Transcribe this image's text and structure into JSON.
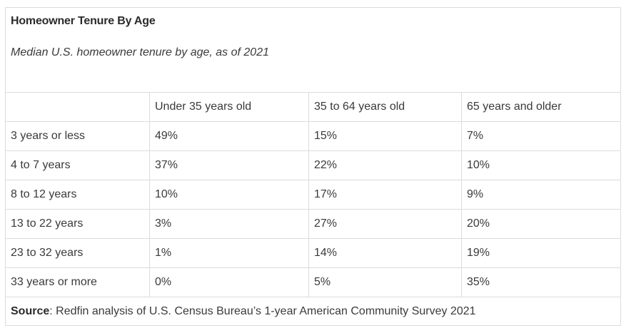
{
  "table": {
    "title": "Homeowner Tenure By Age",
    "subtitle": "Median U.S. homeowner tenure by age, as of 2021",
    "columns": [
      "",
      "Under 35 years old",
      "35 to 64 years old",
      "65 years and older"
    ],
    "rows": [
      {
        "label": "3 years or less",
        "values": [
          "49%",
          "15%",
          "7%"
        ]
      },
      {
        "label": "4 to 7 years",
        "values": [
          "37%",
          "22%",
          "10%"
        ]
      },
      {
        "label": "8 to 12 years",
        "values": [
          "10%",
          "17%",
          "9%"
        ]
      },
      {
        "label": "13 to 22 years",
        "values": [
          "3%",
          "27%",
          "20%"
        ]
      },
      {
        "label": "23 to 32 years",
        "values": [
          "1%",
          "14%",
          "19%"
        ]
      },
      {
        "label": "33 years or more",
        "values": [
          "0%",
          "5%",
          "35%"
        ]
      }
    ],
    "source_label": "Source",
    "source_text": ": Redfin analysis of U.S. Census Bureau’s 1-year American Community Survey 2021"
  }
}
